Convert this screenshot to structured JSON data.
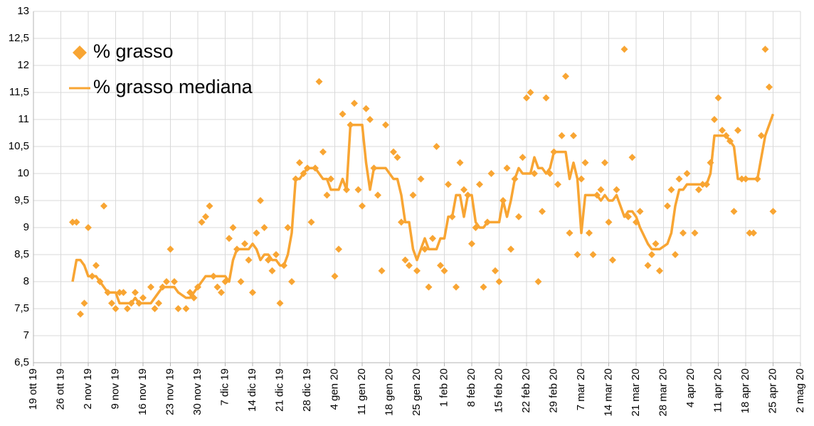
{
  "chart_data": {
    "type": "scatter",
    "legend": "upper left",
    "grid": true,
    "x": [
      "2019-10-29",
      "2019-10-30",
      "2019-10-31",
      "2019-11-01",
      "2019-11-02",
      "2019-11-03",
      "2019-11-04",
      "2019-11-05",
      "2019-11-06",
      "2019-11-07",
      "2019-11-08",
      "2019-11-09",
      "2019-11-10",
      "2019-11-11",
      "2019-11-12",
      "2019-11-13",
      "2019-11-14",
      "2019-11-15",
      "2019-11-16",
      "2019-11-18",
      "2019-11-19",
      "2019-11-20",
      "2019-11-21",
      "2019-11-22",
      "2019-11-23",
      "2019-11-24",
      "2019-11-25",
      "2019-11-27",
      "2019-11-28",
      "2019-11-29",
      "2019-11-30",
      "2019-12-01",
      "2019-12-02",
      "2019-12-03",
      "2019-12-04",
      "2019-12-05",
      "2019-12-06",
      "2019-12-07",
      "2019-12-08",
      "2019-12-09",
      "2019-12-10",
      "2019-12-11",
      "2019-12-12",
      "2019-12-13",
      "2019-12-14",
      "2019-12-15",
      "2019-12-16",
      "2019-12-17",
      "2019-12-18",
      "2019-12-19",
      "2019-12-20",
      "2019-12-21",
      "2019-12-22",
      "2019-12-23",
      "2019-12-24",
      "2019-12-25",
      "2019-12-26",
      "2019-12-27",
      "2019-12-28",
      "2019-12-29",
      "2019-12-30",
      "2019-12-31",
      "2020-01-01",
      "2020-01-02",
      "2020-01-03",
      "2020-01-04",
      "2020-01-05",
      "2020-01-06",
      "2020-01-07",
      "2020-01-08",
      "2020-01-09",
      "2020-01-10",
      "2020-01-11",
      "2020-01-12",
      "2020-01-13",
      "2020-01-14",
      "2020-01-15",
      "2020-01-16",
      "2020-01-17",
      "2020-01-19",
      "2020-01-20",
      "2020-01-21",
      "2020-01-22",
      "2020-01-23",
      "2020-01-24",
      "2020-01-25",
      "2020-01-26",
      "2020-01-27",
      "2020-01-28",
      "2020-01-29",
      "2020-01-30",
      "2020-01-31",
      "2020-02-01",
      "2020-02-02",
      "2020-02-03",
      "2020-02-04",
      "2020-02-05",
      "2020-02-06",
      "2020-02-07",
      "2020-02-08",
      "2020-02-09",
      "2020-02-10",
      "2020-02-11",
      "2020-02-12",
      "2020-02-13",
      "2020-02-14",
      "2020-02-15",
      "2020-02-16",
      "2020-02-17",
      "2020-02-18",
      "2020-02-19",
      "2020-02-20",
      "2020-02-21",
      "2020-02-22",
      "2020-02-23",
      "2020-02-24",
      "2020-02-25",
      "2020-02-26",
      "2020-02-27",
      "2020-02-28",
      "2020-02-29",
      "2020-03-01",
      "2020-03-02",
      "2020-03-03",
      "2020-03-04",
      "2020-03-05",
      "2020-03-06",
      "2020-03-07",
      "2020-03-08",
      "2020-03-09",
      "2020-03-10",
      "2020-03-11",
      "2020-03-12",
      "2020-03-13",
      "2020-03-14",
      "2020-03-15",
      "2020-03-16",
      "2020-03-18",
      "2020-03-19",
      "2020-03-20",
      "2020-03-21",
      "2020-03-22",
      "2020-03-24",
      "2020-03-25",
      "2020-03-26",
      "2020-03-27",
      "2020-03-29",
      "2020-03-30",
      "2020-03-31",
      "2020-04-01",
      "2020-04-02",
      "2020-04-03",
      "2020-04-05",
      "2020-04-06",
      "2020-04-07",
      "2020-04-08",
      "2020-04-09",
      "2020-04-10",
      "2020-04-11",
      "2020-04-12",
      "2020-04-13",
      "2020-04-14",
      "2020-04-15",
      "2020-04-16",
      "2020-04-17",
      "2020-04-18",
      "2020-04-19",
      "2020-04-20",
      "2020-04-21",
      "2020-04-22",
      "2020-04-23",
      "2020-04-24",
      "2020-04-25"
    ],
    "series": [
      {
        "name": "% grasso",
        "type": "scatter",
        "color": "#f8a533",
        "values": [
          9.1,
          9.1,
          7.4,
          7.6,
          9.0,
          8.1,
          8.3,
          8.0,
          9.4,
          7.8,
          7.6,
          7.5,
          7.8,
          7.8,
          7.5,
          7.6,
          7.8,
          7.6,
          7.7,
          7.9,
          7.5,
          7.6,
          7.9,
          8.0,
          8.6,
          8.0,
          7.5,
          7.5,
          7.8,
          7.7,
          7.9,
          9.1,
          9.2,
          9.4,
          8.1,
          7.9,
          7.8,
          8.0,
          8.8,
          9.0,
          8.6,
          8.0,
          8.7,
          8.4,
          7.8,
          8.9,
          9.5,
          9.0,
          8.4,
          8.2,
          8.5,
          7.6,
          8.3,
          9.0,
          8.0,
          9.9,
          10.2,
          10.0,
          10.1,
          9.1,
          10.1,
          11.7,
          10.4,
          9.6,
          9.9,
          8.1,
          8.6,
          11.1,
          9.7,
          10.9,
          11.3,
          9.7,
          9.4,
          11.2,
          11.0,
          10.1,
          9.6,
          8.2,
          10.9,
          10.4,
          10.3,
          9.1,
          8.4,
          8.3,
          9.6,
          8.2,
          9.9,
          8.6,
          7.9,
          8.8,
          10.5,
          8.3,
          8.2,
          9.8,
          9.2,
          7.9,
          10.2,
          9.7,
          9.6,
          8.7,
          9.0,
          9.8,
          7.9,
          9.1,
          10.0,
          8.2,
          8.0,
          9.5,
          10.1,
          8.6,
          9.9,
          9.2,
          10.3,
          11.4,
          11.5,
          10.0,
          8.0,
          9.3,
          11.4,
          10.0,
          10.4,
          9.8,
          10.7,
          11.8,
          8.9,
          10.7,
          8.5,
          9.9,
          10.2,
          8.9,
          8.5,
          9.6,
          9.7,
          10.2,
          9.1,
          8.4,
          9.7,
          12.3,
          9.2,
          10.3,
          9.1,
          9.3,
          8.3,
          8.5,
          8.7,
          8.2,
          9.4,
          9.7,
          8.5,
          9.9,
          8.9,
          10.0,
          8.9,
          9.7,
          9.8,
          9.8,
          10.2,
          11.0,
          11.4,
          10.8,
          10.7,
          10.6,
          9.3,
          10.8,
          9.9,
          9.9,
          8.9,
          8.9,
          9.9,
          10.7,
          12.3,
          11.6,
          9.3
        ]
      },
      {
        "name": "% grasso mediana",
        "type": "line",
        "color": "#f8a533",
        "values": [
          8.0,
          8.4,
          8.4,
          8.3,
          8.1,
          8.1,
          8.1,
          8.0,
          7.9,
          7.8,
          7.8,
          7.8,
          7.6,
          7.6,
          7.6,
          7.6,
          7.7,
          7.6,
          7.6,
          7.6,
          7.7,
          7.8,
          7.9,
          7.9,
          7.9,
          7.9,
          7.8,
          7.7,
          7.7,
          7.8,
          7.9,
          8.0,
          8.1,
          8.1,
          8.1,
          8.1,
          8.1,
          8.1,
          8.0,
          8.4,
          8.6,
          8.6,
          8.6,
          8.6,
          8.7,
          8.6,
          8.4,
          8.5,
          8.5,
          8.4,
          8.4,
          8.3,
          8.3,
          8.5,
          8.9,
          9.9,
          9.9,
          10.0,
          10.1,
          10.1,
          10.1,
          10.0,
          9.9,
          9.9,
          9.7,
          9.7,
          9.7,
          9.9,
          9.7,
          10.9,
          10.9,
          10.9,
          10.9,
          10.2,
          9.7,
          10.1,
          10.1,
          10.1,
          10.1,
          9.9,
          9.9,
          9.6,
          9.1,
          9.1,
          8.6,
          8.4,
          8.6,
          8.8,
          8.6,
          8.6,
          8.6,
          8.8,
          8.8,
          9.2,
          9.2,
          9.6,
          9.6,
          9.2,
          9.6,
          9.6,
          9.1,
          9.0,
          9.0,
          9.1,
          9.1,
          9.1,
          9.1,
          9.5,
          9.2,
          9.5,
          9.9,
          10.1,
          10.0,
          10.0,
          10.0,
          10.3,
          10.1,
          10.1,
          10.0,
          10.1,
          10.4,
          10.4,
          10.4,
          10.4,
          9.9,
          10.2,
          9.9,
          8.9,
          9.6,
          9.6,
          9.6,
          9.6,
          9.5,
          9.6,
          9.5,
          9.5,
          9.6,
          9.2,
          9.3,
          9.3,
          9.2,
          9.0,
          8.7,
          8.6,
          8.6,
          8.6,
          8.7,
          8.9,
          9.4,
          9.7,
          9.7,
          9.8,
          9.8,
          9.8,
          9.8,
          9.8,
          10.0,
          10.7,
          10.7,
          10.7,
          10.7,
          10.6,
          10.5,
          9.9,
          9.9,
          9.9,
          9.9,
          9.9,
          9.9,
          10.3,
          10.7,
          10.9,
          11.1
        ]
      }
    ],
    "xlim": [
      "2019-10-19",
      "2020-05-02"
    ],
    "xticks": [
      {
        "value": "2019-10-19",
        "label": "19 ott 19"
      },
      {
        "value": "2019-10-26",
        "label": "26 ott 19"
      },
      {
        "value": "2019-11-02",
        "label": "2 nov 19"
      },
      {
        "value": "2019-11-09",
        "label": "9 nov 19"
      },
      {
        "value": "2019-11-16",
        "label": "16 nov 19"
      },
      {
        "value": "2019-11-23",
        "label": "23 nov 19"
      },
      {
        "value": "2019-11-30",
        "label": "30 nov 19"
      },
      {
        "value": "2019-12-07",
        "label": "7 dic 19"
      },
      {
        "value": "2019-12-14",
        "label": "14 dic 19"
      },
      {
        "value": "2019-12-21",
        "label": "21 dic 19"
      },
      {
        "value": "2019-12-28",
        "label": "28 dic 19"
      },
      {
        "value": "2020-01-04",
        "label": "4 gen 20"
      },
      {
        "value": "2020-01-11",
        "label": "11 gen 20"
      },
      {
        "value": "2020-01-18",
        "label": "18 gen 20"
      },
      {
        "value": "2020-01-25",
        "label": "25 gen 20"
      },
      {
        "value": "2020-02-01",
        "label": "1 feb 20"
      },
      {
        "value": "2020-02-08",
        "label": "8 feb 20"
      },
      {
        "value": "2020-02-15",
        "label": "15 feb 20"
      },
      {
        "value": "2020-02-22",
        "label": "22 feb 20"
      },
      {
        "value": "2020-02-29",
        "label": "29 feb 20"
      },
      {
        "value": "2020-03-07",
        "label": "7 mar 20"
      },
      {
        "value": "2020-03-14",
        "label": "14 mar 20"
      },
      {
        "value": "2020-03-21",
        "label": "21 mar 20"
      },
      {
        "value": "2020-03-28",
        "label": "28 mar 20"
      },
      {
        "value": "2020-04-04",
        "label": "4 apr 20"
      },
      {
        "value": "2020-04-11",
        "label": "11 apr 20"
      },
      {
        "value": "2020-04-18",
        "label": "18 apr 20"
      },
      {
        "value": "2020-04-25",
        "label": "25 apr 20"
      },
      {
        "value": "2020-05-02",
        "label": "2 mag 20"
      }
    ],
    "ylim": [
      6.5,
      13
    ],
    "yticks": [
      {
        "value": 6.5,
        "label": "6,5"
      },
      7,
      {
        "value": 7.5,
        "label": "7,5"
      },
      8,
      {
        "value": 8.5,
        "label": "8,5"
      },
      9,
      {
        "value": 9.5,
        "label": "9,5"
      },
      10,
      {
        "value": 10.5,
        "label": "10,5"
      },
      11,
      {
        "value": 11.5,
        "label": "11,5"
      },
      12,
      {
        "value": 12.5,
        "label": "12,5"
      },
      13
    ]
  }
}
